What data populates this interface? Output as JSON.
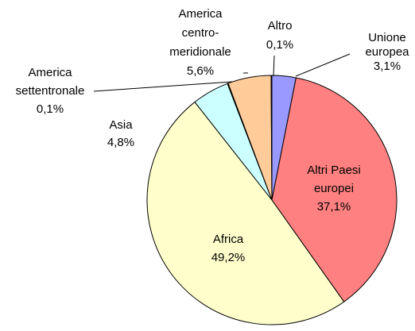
{
  "chart_data": {
    "type": "pie",
    "categories": [
      "Unione\neuropea",
      "Altri Paesi\neuropei",
      "Africa",
      "Asia",
      "America\nsettentronale",
      "America\ncentro-\nmeridionale",
      "Altro"
    ],
    "values": [
      3.1,
      37.1,
      49.2,
      4.8,
      0.1,
      5.6,
      0.1
    ],
    "value_labels": [
      "3,1%",
      "37,1%",
      "49,2%",
      "4,8%",
      "0,1%",
      "5,6%",
      "0,1%"
    ],
    "colors": [
      "#9999ff",
      "#ff8080",
      "#ffffcc",
      "#ccffff",
      "#660066",
      "#ffcc99",
      "#0066cc"
    ]
  }
}
